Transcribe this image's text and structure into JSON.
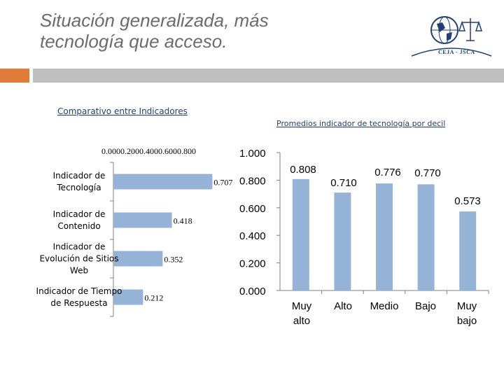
{
  "slide": {
    "title": "Situación generalizada, más tecnología que acceso.",
    "logo_text": "CEJA - JSCA"
  },
  "colors": {
    "accent": "#e07b39",
    "rule": "#bfbfbf",
    "bar": "#95b3d7",
    "link": "#1f3f77"
  },
  "chart_data": [
    {
      "type": "bar",
      "orientation": "horizontal",
      "title": "Comparativo entre Indicadores",
      "categories": [
        "Indicador de Tecnología",
        "Indicador de Contenido",
        "Indicador de Evolución de Sitios Web",
        "Indicador de Tiempo de Respuesta"
      ],
      "category_lines": [
        [
          "Indicador de",
          "Tecnología"
        ],
        [
          "Indicador de",
          "Contenido"
        ],
        [
          "Indicador de",
          "Evolución de Sitios",
          "Web"
        ],
        [
          "Indicador de Tiempo",
          "de Respuesta"
        ]
      ],
      "values": [
        0.707,
        0.418,
        0.352,
        0.212
      ],
      "value_labels": [
        "0.707",
        "0.418",
        "0.352",
        "0.212"
      ],
      "xlim": [
        0,
        0.8
      ],
      "xticks": [
        0,
        0.2,
        0.4,
        0.6,
        0.8
      ],
      "xtick_labels_text": "0.0000.2000.4000.6000.800"
    },
    {
      "type": "bar",
      "title": "Promedios indicador de tecnología por decil",
      "categories": [
        "Muy alto",
        "Alto",
        "Medio",
        "Bajo",
        "Muy bajo"
      ],
      "category_lines": [
        [
          "Muy",
          "alto"
        ],
        [
          "Alto"
        ],
        [
          "Medio"
        ],
        [
          "Bajo"
        ],
        [
          "Muy",
          "bajo"
        ]
      ],
      "values": [
        0.808,
        0.71,
        0.776,
        0.77,
        0.573
      ],
      "value_labels": [
        "0.808",
        "0.710",
        "0.776",
        "0.770",
        "0.573"
      ],
      "ylim": [
        0,
        1
      ],
      "yticks": [
        0,
        0.2,
        0.4,
        0.6,
        0.8,
        1.0
      ],
      "ytick_labels": [
        "0.000",
        "0.200",
        "0.400",
        "0.600",
        "0.800",
        "1.000"
      ]
    }
  ]
}
